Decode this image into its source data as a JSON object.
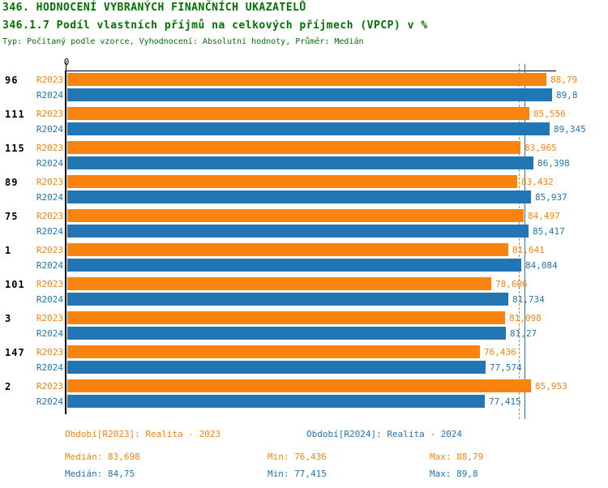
{
  "header": {
    "title": "346. HODNOCENÍ VYBRANÝCH FINANČNÍCH UKAZATELŮ",
    "subtitle": "346.1.7 Podíl vlastních příjmů na celkových příjmech (VPCP) v %",
    "meta": "Typ: Počítaný podle vzorce, Vyhodnocení: Absolutní hodnoty, Průměr: Medián"
  },
  "colors": {
    "title_green": "#007200",
    "r2023_orange": "#F8830E",
    "r2024_blue": "#2276B4",
    "axis_black": "#000000"
  },
  "chart_data": {
    "type": "bar",
    "orientation": "horizontal",
    "title": "346.1.7 Podíl vlastních příjmů na celkových příjmech (VPCP) v %",
    "xlabel": "",
    "ylabel": "",
    "xlim": [
      0,
      90.5
    ],
    "x_axis_zero_label": "0",
    "gridlines": false,
    "categories": [
      "96",
      "111",
      "115",
      "89",
      "75",
      "1",
      "101",
      "3",
      "147",
      "2"
    ],
    "series": [
      {
        "name": "R2023",
        "legend": "Realita - 2023",
        "values": [
          88.79,
          85.556,
          83.965,
          83.432,
          84.497,
          81.641,
          78.606,
          81.098,
          76.436,
          85.953
        ],
        "display": [
          "88,79",
          "85,556",
          "83,965",
          "83,432",
          "84,497",
          "81,641",
          "78,606",
          "81,098",
          "76,436",
          "85,953"
        ],
        "median": 83.698
      },
      {
        "name": "R2024",
        "legend": "Realita - 2024",
        "values": [
          89.8,
          89.345,
          86.398,
          85.937,
          85.417,
          84.084,
          81.734,
          81.27,
          77.574,
          77.415
        ],
        "display": [
          "89,8",
          "89,345",
          "86,398",
          "85,937",
          "85,417",
          "84,084",
          "81,734",
          "81,27",
          "77,574",
          "77,415"
        ],
        "median": 84.75
      }
    ],
    "median_lines": [
      {
        "series": "R2023",
        "value": 83.698,
        "style": "dashed"
      },
      {
        "series": "R2024",
        "value": 84.75,
        "style": "solid"
      }
    ]
  },
  "legend": {
    "r2023": "Období[R2023]: Realita - 2023",
    "r2024": "Období[R2024]: Realita - 2024"
  },
  "stats": {
    "r2023": {
      "median": "Medián: 83,698",
      "min": "Min: 76,436",
      "max": "Max: 88,79"
    },
    "r2024": {
      "median": "Medián: 84,75",
      "min": "Min: 77,415",
      "max": "Max: 89,8"
    }
  }
}
